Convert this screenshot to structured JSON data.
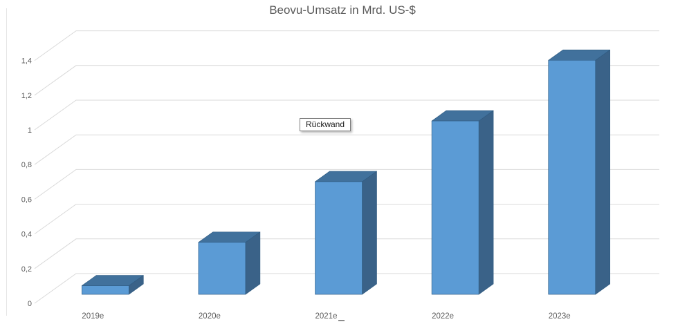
{
  "chart_data": {
    "type": "bar",
    "subtype": "3d-column",
    "title": "Beovu-Umsatz in Mrd. US-$",
    "categories": [
      "2019e",
      "2020e",
      "2021e",
      "2022e",
      "2023e"
    ],
    "values": [
      0.05,
      0.3,
      0.65,
      1.0,
      1.35
    ],
    "xlabel": "",
    "ylabel": "",
    "ylim": [
      0,
      1.4
    ],
    "ytick_step": 0.2,
    "yticks": [
      {
        "value": 0.0,
        "label": "0"
      },
      {
        "value": 0.2,
        "label": "0,2"
      },
      {
        "value": 0.4,
        "label": "0,4"
      },
      {
        "value": 0.6,
        "label": "0,6"
      },
      {
        "value": 0.8,
        "label": "0,8"
      },
      {
        "value": 1.0,
        "label": "1"
      },
      {
        "value": 1.2,
        "label": "1,2"
      },
      {
        "value": 1.4,
        "label": "1,4"
      }
    ],
    "grid": true,
    "legend": false,
    "number_format": "german-decimal-comma",
    "colors": {
      "bar_front": "#5B9BD5",
      "bar_top": "#41719C",
      "bar_side": "#3A6288",
      "bar_edge": "#2E5A80",
      "gridline": "#D9D9D9",
      "axis_text": "#595959",
      "title_text": "#595959",
      "background": "#FFFFFF"
    }
  },
  "tooltip": {
    "label": "Rückwand"
  }
}
